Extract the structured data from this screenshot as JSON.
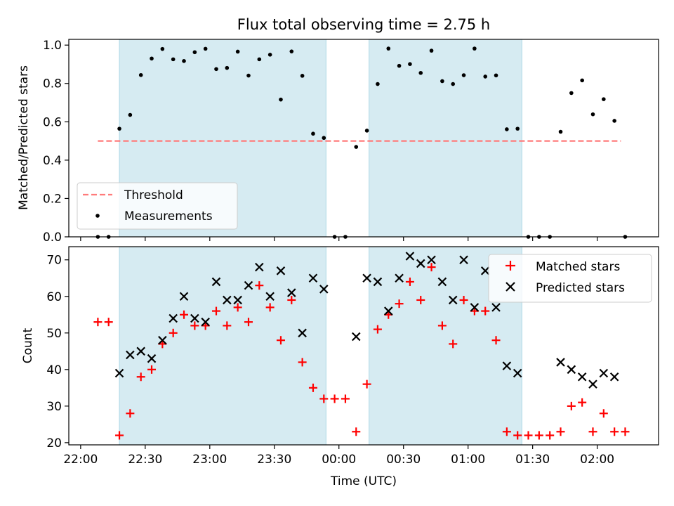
{
  "title": "Flux total observing time = 2.75 h",
  "xlabel": "Time (UTC)",
  "x_tick_labels": [
    "22:00",
    "22:30",
    "23:00",
    "23:30",
    "00:00",
    "00:30",
    "01:00",
    "01:30",
    "02:00"
  ],
  "x_tick_minutes": [
    0,
    30,
    60,
    90,
    120,
    150,
    180,
    210,
    240
  ],
  "x_minutes_range": [
    -5.5,
    268.5
  ],
  "shaded_intervals": [
    [
      18,
      114
    ],
    [
      134,
      205
    ]
  ],
  "colors": {
    "shade": "#add8e6",
    "threshold": "#ff7b7b",
    "measurement": "#000000",
    "matched": "#ff0000",
    "predicted": "#000000"
  },
  "chart_data": [
    {
      "type": "scatter",
      "ylabel": "Matched/Predicted stars",
      "ylim": [
        0,
        1.03
      ],
      "y_ticks": [
        0.0,
        0.2,
        0.4,
        0.6,
        0.8,
        1.0
      ],
      "y_tick_labels": [
        "0.0",
        "0.2",
        "0.4",
        "0.6",
        "0.8",
        "1.0"
      ],
      "legend": {
        "position": "lower-left",
        "entries": [
          "Threshold",
          "Measurements"
        ]
      },
      "threshold": {
        "name": "Threshold",
        "value": 0.5,
        "x_range": [
          "22:08",
          "02:11"
        ]
      },
      "series": [
        {
          "name": "Measurements",
          "marker": "dot",
          "points": [
            [
              "22:08",
              0.0
            ],
            [
              "22:13",
              0.0
            ],
            [
              "22:18",
              0.564
            ],
            [
              "22:23",
              0.636
            ],
            [
              "22:28",
              0.844
            ],
            [
              "22:33",
              0.93
            ],
            [
              "22:38",
              0.98
            ],
            [
              "22:43",
              0.926
            ],
            [
              "22:48",
              0.917
            ],
            [
              "22:53",
              0.963
            ],
            [
              "22:58",
              0.981
            ],
            [
              "23:03",
              0.875
            ],
            [
              "23:08",
              0.881
            ],
            [
              "23:13",
              0.966
            ],
            [
              "23:18",
              0.841
            ],
            [
              "23:23",
              0.926
            ],
            [
              "23:28",
              0.95
            ],
            [
              "23:33",
              0.716
            ],
            [
              "23:38",
              0.967
            ],
            [
              "23:43",
              0.84
            ],
            [
              "23:48",
              0.538
            ],
            [
              "23:53",
              0.516
            ],
            [
              "23:58",
              0.0
            ],
            [
              "00:03",
              0.0
            ],
            [
              "00:08",
              0.469
            ],
            [
              "00:13",
              0.554
            ],
            [
              "00:18",
              0.797
            ],
            [
              "00:23",
              0.982
            ],
            [
              "00:28",
              0.892
            ],
            [
              "00:33",
              0.901
            ],
            [
              "00:38",
              0.855
            ],
            [
              "00:43",
              0.971
            ],
            [
              "00:48",
              0.812
            ],
            [
              "00:53",
              0.797
            ],
            [
              "00:58",
              0.843
            ],
            [
              "01:03",
              0.982
            ],
            [
              "01:08",
              0.836
            ],
            [
              "01:13",
              0.842
            ],
            [
              "01:18",
              0.561
            ],
            [
              "01:23",
              0.564
            ],
            [
              "01:28",
              0.0
            ],
            [
              "01:33",
              0.0
            ],
            [
              "01:38",
              0.0
            ],
            [
              "01:43",
              0.548
            ],
            [
              "01:48",
              0.75
            ],
            [
              "01:53",
              0.816
            ],
            [
              "01:58",
              0.639
            ],
            [
              "02:03",
              0.718
            ],
            [
              "02:08",
              0.605
            ],
            [
              "02:13",
              0.0
            ]
          ]
        }
      ]
    },
    {
      "type": "scatter",
      "ylabel": "Count",
      "ylim": [
        19.4,
        73.6
      ],
      "y_ticks": [
        20,
        30,
        40,
        50,
        60,
        70
      ],
      "y_tick_labels": [
        "20",
        "30",
        "40",
        "50",
        "60",
        "70"
      ],
      "legend": {
        "position": "upper-right",
        "entries": [
          "Matched stars",
          "Predicted stars"
        ]
      },
      "series": [
        {
          "name": "Matched stars",
          "marker": "plus",
          "points": [
            [
              "22:08",
              53
            ],
            [
              "22:13",
              53
            ],
            [
              "22:18",
              22
            ],
            [
              "22:23",
              28
            ],
            [
              "22:28",
              38
            ],
            [
              "22:33",
              40
            ],
            [
              "22:38",
              47
            ],
            [
              "22:43",
              50
            ],
            [
              "22:48",
              55
            ],
            [
              "22:53",
              52
            ],
            [
              "22:58",
              52
            ],
            [
              "23:03",
              56
            ],
            [
              "23:08",
              52
            ],
            [
              "23:13",
              57
            ],
            [
              "23:18",
              53
            ],
            [
              "23:23",
              63
            ],
            [
              "23:28",
              57
            ],
            [
              "23:33",
              48
            ],
            [
              "23:38",
              59
            ],
            [
              "23:43",
              42
            ],
            [
              "23:48",
              35
            ],
            [
              "23:53",
              32
            ],
            [
              "23:58",
              32
            ],
            [
              "00:03",
              32
            ],
            [
              "00:08",
              23
            ],
            [
              "00:13",
              36
            ],
            [
              "00:18",
              51
            ],
            [
              "00:23",
              55
            ],
            [
              "00:28",
              58
            ],
            [
              "00:33",
              64
            ],
            [
              "00:38",
              59
            ],
            [
              "00:43",
              68
            ],
            [
              "00:48",
              52
            ],
            [
              "00:53",
              47
            ],
            [
              "00:58",
              59
            ],
            [
              "01:03",
              56
            ],
            [
              "01:08",
              56
            ],
            [
              "01:13",
              48
            ],
            [
              "01:18",
              23
            ],
            [
              "01:23",
              22
            ],
            [
              "01:28",
              22
            ],
            [
              "01:33",
              22
            ],
            [
              "01:38",
              22
            ],
            [
              "01:43",
              23
            ],
            [
              "01:48",
              30
            ],
            [
              "01:53",
              31
            ],
            [
              "01:58",
              23
            ],
            [
              "02:03",
              28
            ],
            [
              "02:08",
              23
            ],
            [
              "02:13",
              23
            ]
          ]
        },
        {
          "name": "Predicted stars",
          "marker": "x",
          "points": [
            [
              "22:18",
              39
            ],
            [
              "22:23",
              44
            ],
            [
              "22:28",
              45
            ],
            [
              "22:33",
              43
            ],
            [
              "22:38",
              48
            ],
            [
              "22:43",
              54
            ],
            [
              "22:48",
              60
            ],
            [
              "22:53",
              54
            ],
            [
              "22:58",
              53
            ],
            [
              "23:03",
              64
            ],
            [
              "23:08",
              59
            ],
            [
              "23:13",
              59
            ],
            [
              "23:18",
              63
            ],
            [
              "23:23",
              68
            ],
            [
              "23:28",
              60
            ],
            [
              "23:33",
              67
            ],
            [
              "23:38",
              61
            ],
            [
              "23:43",
              50
            ],
            [
              "23:48",
              65
            ],
            [
              "23:53",
              62
            ],
            [
              "00:08",
              49
            ],
            [
              "00:13",
              65
            ],
            [
              "00:18",
              64
            ],
            [
              "00:23",
              56
            ],
            [
              "00:28",
              65
            ],
            [
              "00:33",
              71
            ],
            [
              "00:38",
              69
            ],
            [
              "00:43",
              70
            ],
            [
              "00:48",
              64
            ],
            [
              "00:53",
              59
            ],
            [
              "00:58",
              70
            ],
            [
              "01:03",
              57
            ],
            [
              "01:08",
              67
            ],
            [
              "01:13",
              57
            ],
            [
              "01:18",
              41
            ],
            [
              "01:23",
              39
            ],
            [
              "01:43",
              42
            ],
            [
              "01:48",
              40
            ],
            [
              "01:53",
              38
            ],
            [
              "01:58",
              36
            ],
            [
              "02:03",
              39
            ],
            [
              "02:08",
              38
            ]
          ]
        }
      ]
    }
  ]
}
